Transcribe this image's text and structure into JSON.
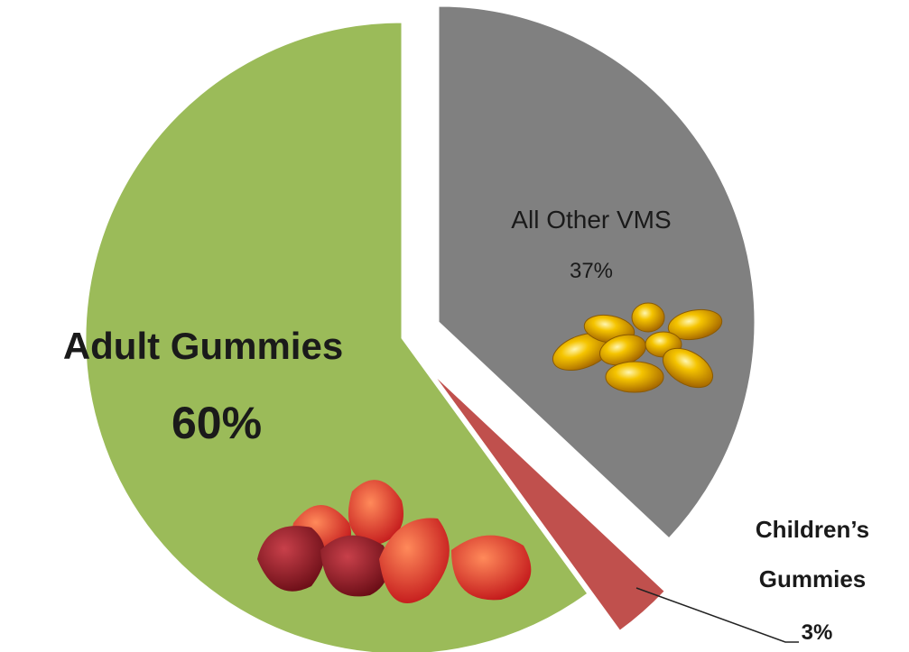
{
  "chart_data": {
    "type": "pie",
    "categories": [
      "All Other VMS",
      "Children’s Gummies",
      "Adult Gummies"
    ],
    "values": [
      37,
      3,
      60
    ],
    "value_labels": [
      "37%",
      "3%",
      "60%"
    ],
    "colors": [
      "#808080",
      "#c0504d",
      "#9bbb59"
    ]
  }
}
